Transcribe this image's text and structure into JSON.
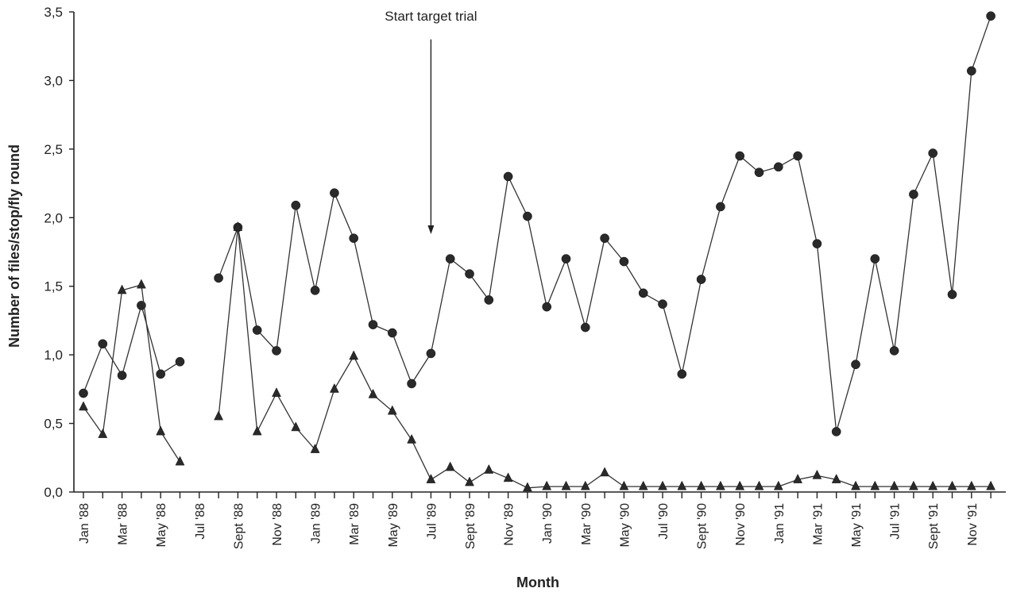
{
  "chart_data": {
    "type": "line",
    "title": "",
    "xlabel": "Month",
    "ylabel": "Number of files/stop/fly round",
    "ylim": [
      0,
      3.5
    ],
    "yticks": [
      "0,0",
      "0,5",
      "1,0",
      "1,5",
      "2,0",
      "2,5",
      "3,0",
      "3,5"
    ],
    "ytick_values": [
      0,
      0.5,
      1.0,
      1.5,
      2.0,
      2.5,
      3.0,
      3.5
    ],
    "x_count": 48,
    "x_labels": [
      {
        "index": 0,
        "label": "Jan '88"
      },
      {
        "index": 2,
        "label": "Mar '88"
      },
      {
        "index": 4,
        "label": "May '88"
      },
      {
        "index": 6,
        "label": "Jul '88"
      },
      {
        "index": 8,
        "label": "Sept '88"
      },
      {
        "index": 10,
        "label": "Nov '88"
      },
      {
        "index": 12,
        "label": "Jan '89"
      },
      {
        "index": 14,
        "label": "Mar '89"
      },
      {
        "index": 16,
        "label": "May '89"
      },
      {
        "index": 18,
        "label": "Jul '89"
      },
      {
        "index": 20,
        "label": "Sept '89"
      },
      {
        "index": 22,
        "label": "Nov '89"
      },
      {
        "index": 24,
        "label": "Jan '90"
      },
      {
        "index": 26,
        "label": "Mar '90"
      },
      {
        "index": 28,
        "label": "May '90"
      },
      {
        "index": 30,
        "label": "Jul '90"
      },
      {
        "index": 32,
        "label": "Sept '90"
      },
      {
        "index": 34,
        "label": "Nov '90"
      },
      {
        "index": 36,
        "label": "Jan '91"
      },
      {
        "index": 38,
        "label": "Mar '91"
      },
      {
        "index": 40,
        "label": "May '91"
      },
      {
        "index": 42,
        "label": "Jul '91"
      },
      {
        "index": 44,
        "label": "Sept '91"
      },
      {
        "index": 46,
        "label": "Nov '91"
      }
    ],
    "grid": false,
    "annotation": {
      "text": "Start target trial",
      "x_index": 18.0,
      "arrow_from": 3.3,
      "arrow_to": 1.88
    },
    "series": [
      {
        "marker": "circle",
        "segments": [
          {
            "x": [
              0,
              1,
              2,
              3,
              4,
              5
            ],
            "y": [
              0.72,
              1.08,
              0.85,
              1.36,
              0.86,
              0.95
            ]
          },
          {
            "x": [
              7,
              8,
              9,
              10,
              11,
              12,
              13,
              14,
              15,
              16,
              17,
              18,
              19,
              20,
              21,
              22,
              23,
              24,
              25,
              26,
              27,
              28,
              29,
              30,
              31,
              32,
              33,
              34,
              35,
              36,
              37,
              38,
              39,
              40,
              41,
              42,
              43,
              44,
              45,
              46,
              47
            ],
            "y": [
              1.56,
              1.93,
              1.18,
              1.03,
              2.09,
              1.47,
              2.18,
              1.85,
              1.22,
              1.16,
              0.79,
              1.01,
              1.7,
              1.59,
              1.4,
              2.3,
              2.01,
              1.35,
              1.7,
              1.2,
              1.85,
              1.68,
              1.45,
              1.37,
              0.86,
              1.55,
              2.08,
              2.45,
              2.33,
              2.37,
              2.45,
              1.81,
              0.44,
              0.93,
              1.7,
              1.03,
              2.17,
              2.47,
              1.44,
              3.07,
              3.47
            ]
          }
        ]
      },
      {
        "marker": "triangle",
        "segments": [
          {
            "x": [
              0,
              1,
              2,
              3,
              4,
              5
            ],
            "y": [
              0.62,
              0.42,
              1.47,
              1.51,
              0.44,
              0.22
            ]
          },
          {
            "x": [
              7,
              8,
              9,
              10,
              11,
              12,
              13,
              14,
              15,
              16,
              17,
              18,
              19,
              20,
              21,
              22,
              23,
              24,
              25,
              26,
              27,
              28,
              29,
              30,
              31,
              32,
              33,
              34,
              35,
              36,
              37,
              38,
              39,
              40,
              41,
              42,
              43,
              44,
              45,
              46,
              47
            ],
            "y": [
              0.55,
              1.93,
              0.44,
              0.72,
              0.47,
              0.31,
              0.75,
              0.99,
              0.71,
              0.59,
              0.38,
              0.09,
              0.18,
              0.07,
              0.16,
              0.1,
              0.03,
              0.04,
              0.04,
              0.04,
              0.14,
              0.04,
              0.04,
              0.04,
              0.04,
              0.04,
              0.04,
              0.04,
              0.04,
              0.04,
              0.09,
              0.12,
              0.09,
              0.04,
              0.04,
              0.04,
              0.04,
              0.04,
              0.04,
              0.04,
              0.04
            ]
          }
        ]
      }
    ]
  }
}
